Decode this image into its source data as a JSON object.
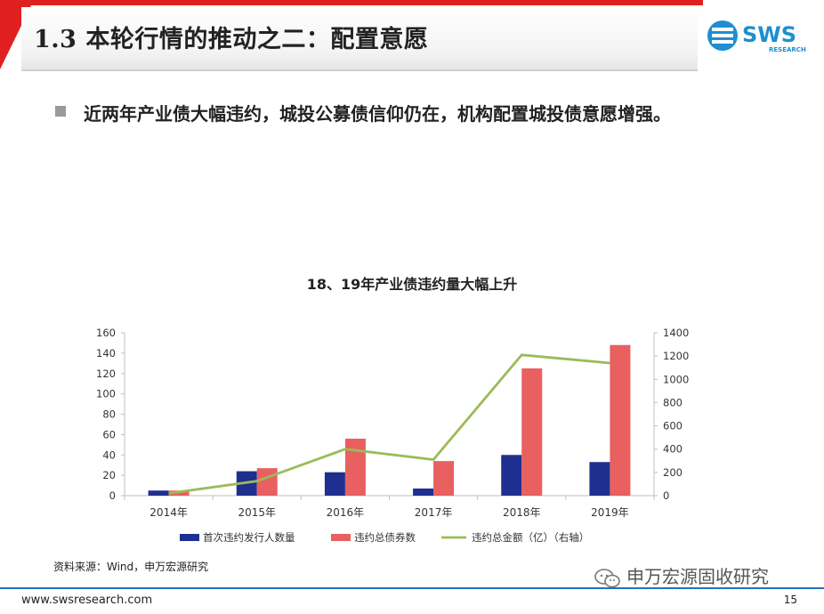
{
  "slide": {
    "title": "1.3 本轮行情的推动之二：配置意愿",
    "logo_text": "SWS",
    "logo_subtext": "RESEARCH",
    "bullet": "近两年产业债大幅违约，城投公募债信仰仍在，机构配置城投债意愿增强。",
    "source": "资料来源：Wind，申万宏源研究",
    "watermark": "申万宏源固收研究",
    "footer_url": "www.swsresearch.com",
    "page_number": "15"
  },
  "colors": {
    "accent_red": "#e02020",
    "footer_blue": "#1e73be",
    "bar_blue": "#1f2f8f",
    "bar_red": "#e86060",
    "line_green": "#9bbb59"
  },
  "chart_data": {
    "type": "bar",
    "title": "18、19年产业债违约量大幅上升",
    "categories": [
      "2014年",
      "2015年",
      "2016年",
      "2017年",
      "2018年",
      "2019年"
    ],
    "series": [
      {
        "name": "首次违约发行人数量",
        "type": "bar",
        "axis": "left",
        "values": [
          5,
          24,
          23,
          7,
          40,
          33
        ]
      },
      {
        "name": "违约总债券数",
        "type": "bar",
        "axis": "left",
        "values": [
          5,
          27,
          56,
          34,
          125,
          148
        ]
      },
      {
        "name": "违约总金额（亿）（右轴）",
        "type": "line",
        "axis": "right",
        "values": [
          20,
          125,
          400,
          310,
          1210,
          1140
        ]
      }
    ],
    "y_left": {
      "min": 0,
      "max": 160,
      "ticks": [
        "0",
        "20",
        "40",
        "60",
        "80",
        "100",
        "120",
        "140",
        "160"
      ]
    },
    "y_right": {
      "min": 0,
      "max": 1400,
      "ticks": [
        "0",
        "200",
        "400",
        "600",
        "800",
        "1000",
        "1200",
        "1400"
      ]
    },
    "legend_position": "bottom",
    "grid": false
  }
}
